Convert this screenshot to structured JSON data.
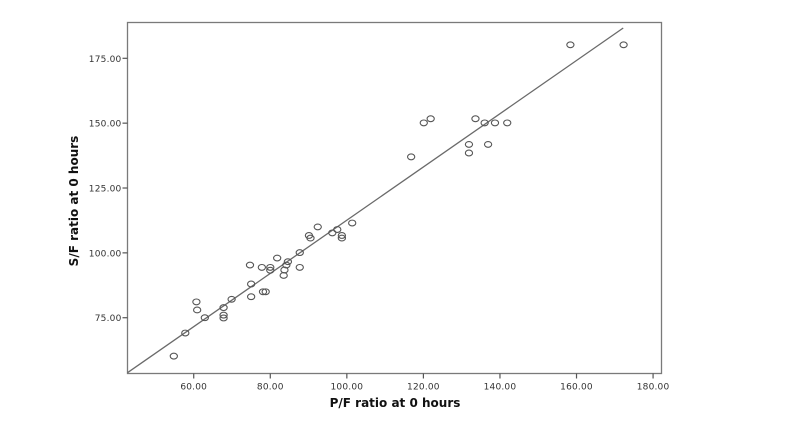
{
  "chart_data": {
    "type": "scatter",
    "title": "",
    "xlabel": "P/F ratio  at 0 hours",
    "ylabel": "S/F ratio  at 0 hours",
    "xlim": [
      42.7,
      182.2
    ],
    "ylim": [
      53.5,
      188.8
    ],
    "grid": false,
    "legend": null,
    "x_ticks": [
      60,
      80,
      100,
      120,
      140,
      160,
      180
    ],
    "x_tick_labels": [
      "60.00",
      "80.00",
      "100.00",
      "120.00",
      "140.00",
      "160.00",
      "180.00"
    ],
    "y_ticks": [
      75,
      100,
      125,
      150,
      175
    ],
    "y_tick_labels": [
      "75.00",
      "100.00",
      "125.00",
      "150.00",
      "175.00"
    ],
    "marker": "open-circle",
    "fit_line": {
      "type": "linear",
      "slope": 1.026,
      "intercept": 10.0,
      "x_range": [
        42.7,
        172.2
      ]
    },
    "points": [
      {
        "x": 54.8,
        "y": 60.2
      },
      {
        "x": 57.8,
        "y": 69.1
      },
      {
        "x": 60.7,
        "y": 81.1
      },
      {
        "x": 60.9,
        "y": 78.0
      },
      {
        "x": 62.9,
        "y": 75.0
      },
      {
        "x": 67.8,
        "y": 78.9
      },
      {
        "x": 67.8,
        "y": 76.0
      },
      {
        "x": 67.8,
        "y": 74.9
      },
      {
        "x": 69.9,
        "y": 82.1
      },
      {
        "x": 74.7,
        "y": 95.3
      },
      {
        "x": 75.0,
        "y": 88.0
      },
      {
        "x": 75.0,
        "y": 83.1
      },
      {
        "x": 77.8,
        "y": 94.4
      },
      {
        "x": 78.1,
        "y": 85.0
      },
      {
        "x": 78.8,
        "y": 85.0
      },
      {
        "x": 80.0,
        "y": 94.4
      },
      {
        "x": 80.0,
        "y": 93.3
      },
      {
        "x": 81.8,
        "y": 98.0
      },
      {
        "x": 83.5,
        "y": 91.3
      },
      {
        "x": 83.7,
        "y": 93.4
      },
      {
        "x": 84.2,
        "y": 95.3
      },
      {
        "x": 84.6,
        "y": 96.6
      },
      {
        "x": 87.7,
        "y": 94.4
      },
      {
        "x": 87.7,
        "y": 100.1
      },
      {
        "x": 90.1,
        "y": 106.7
      },
      {
        "x": 90.5,
        "y": 105.7
      },
      {
        "x": 92.4,
        "y": 110.0
      },
      {
        "x": 96.2,
        "y": 107.7
      },
      {
        "x": 97.5,
        "y": 109.0
      },
      {
        "x": 98.7,
        "y": 106.7
      },
      {
        "x": 98.7,
        "y": 105.7
      },
      {
        "x": 101.4,
        "y": 111.5
      },
      {
        "x": 116.8,
        "y": 137.0
      },
      {
        "x": 120.1,
        "y": 150.1
      },
      {
        "x": 121.9,
        "y": 151.7
      },
      {
        "x": 131.9,
        "y": 141.8
      },
      {
        "x": 131.9,
        "y": 138.5
      },
      {
        "x": 133.6,
        "y": 151.7
      },
      {
        "x": 136.0,
        "y": 150.1
      },
      {
        "x": 136.9,
        "y": 141.8
      },
      {
        "x": 138.7,
        "y": 150.1
      },
      {
        "x": 141.9,
        "y": 150.1
      },
      {
        "x": 158.4,
        "y": 180.2
      },
      {
        "x": 172.3,
        "y": 180.2
      }
    ]
  }
}
